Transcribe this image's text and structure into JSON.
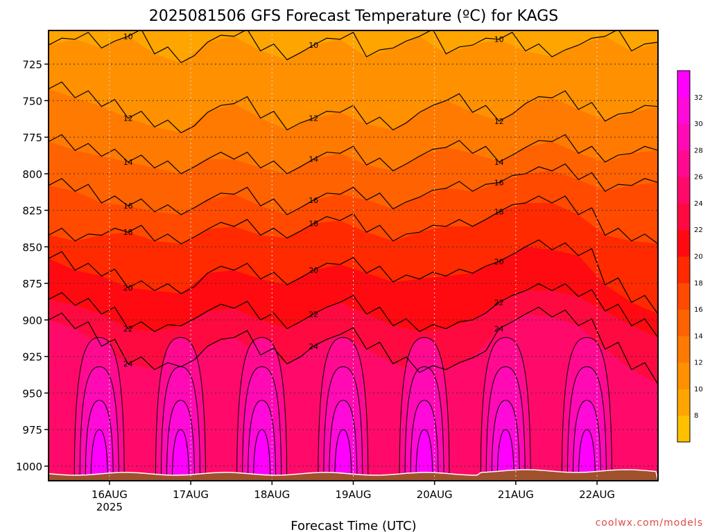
{
  "chart_data": {
    "type": "heatmap",
    "title": "2025081506 GFS Forecast Temperature (ºC) for KAGS",
    "xlabel": "Forecast Time (UTC)",
    "ylabel": "",
    "x_ticks": [
      "16AUG",
      "17AUG",
      "18AUG",
      "19AUG",
      "20AUG",
      "21AUG",
      "22AUG"
    ],
    "x_tick_year": "2025",
    "x_tick_hours": [
      18,
      42,
      66,
      90,
      114,
      138,
      162
    ],
    "xlim_hours": [
      0,
      180
    ],
    "y_ticks": [
      725,
      750,
      775,
      800,
      825,
      850,
      875,
      900,
      925,
      950,
      975,
      1000
    ],
    "ylim_hPa": [
      702,
      1010
    ],
    "y_axis_inverted": true,
    "grid": "dotted",
    "colorbar": {
      "levels": [
        6,
        8,
        10,
        12,
        14,
        16,
        18,
        20,
        22,
        24,
        26,
        28,
        30,
        32,
        34
      ],
      "tick_labels": [
        "8",
        "10",
        "12",
        "14",
        "16",
        "18",
        "20",
        "22",
        "24",
        "26",
        "28",
        "30",
        "32"
      ],
      "colors": [
        "#ffc000",
        "#ffa500",
        "#ff9000",
        "#ff7a00",
        "#ff6200",
        "#ff4a00",
        "#ff2a00",
        "#ff0a10",
        "#ff0a40",
        "#ff0a6a",
        "#ff0a90",
        "#ff0ab4",
        "#ff0ad8",
        "#ff00ff"
      ]
    },
    "ground_color": "#a0522d",
    "series": [
      {
        "name": "10",
        "pressure_hPa": [
          712,
          708,
          714,
          706,
          718,
          724,
          710,
          706,
          716,
          722,
          712,
          708,
          720,
          714,
          706,
          718,
          712,
          708,
          716,
          720,
          712,
          706,
          716,
          710
        ]
      },
      {
        "name": "12",
        "pressure_hPa": [
          742,
          748,
          754,
          762,
          768,
          772,
          758,
          752,
          762,
          770,
          762,
          758,
          766,
          770,
          758,
          750,
          758,
          764,
          752,
          748,
          756,
          764,
          758,
          754
        ]
      },
      {
        "name": "14",
        "pressure_hPa": [
          778,
          784,
          788,
          792,
          796,
          800,
          790,
          790,
          796,
          800,
          790,
          786,
          794,
          798,
          788,
          782,
          786,
          792,
          782,
          778,
          786,
          792,
          786,
          784
        ]
      },
      {
        "name": "16",
        "pressure_hPa": [
          808,
          812,
          820,
          822,
          826,
          828,
          818,
          814,
          822,
          828,
          818,
          814,
          818,
          824,
          816,
          810,
          812,
          806,
          800,
          798,
          804,
          812,
          808,
          806
        ]
      },
      {
        "name": "18",
        "pressure_hPa": [
          842,
          846,
          842,
          840,
          846,
          848,
          838,
          836,
          842,
          844,
          834,
          832,
          840,
          846,
          840,
          836,
          836,
          826,
          820,
          820,
          828,
          842,
          846,
          848
        ]
      },
      {
        "name": "20",
        "pressure_hPa": [
          858,
          866,
          870,
          878,
          880,
          882,
          868,
          866,
          872,
          876,
          866,
          862,
          868,
          874,
          872,
          870,
          868,
          860,
          850,
          852,
          856,
          876,
          888,
          896
        ]
      },
      {
        "name": "22",
        "pressure_hPa": [
          886,
          890,
          896,
          906,
          908,
          904,
          894,
          892,
          900,
          906,
          896,
          888,
          896,
          904,
          908,
          906,
          900,
          888,
          880,
          880,
          884,
          894,
          904,
          912
        ]
      },
      {
        "name": "24",
        "pressure_hPa": [
          900,
          906,
          918,
          930,
          934,
          932,
          918,
          912,
          924,
          930,
          918,
          910,
          920,
          930,
          936,
          934,
          926,
          906,
          896,
          898,
          904,
          920,
          934,
          944
        ]
      }
    ]
  }
}
